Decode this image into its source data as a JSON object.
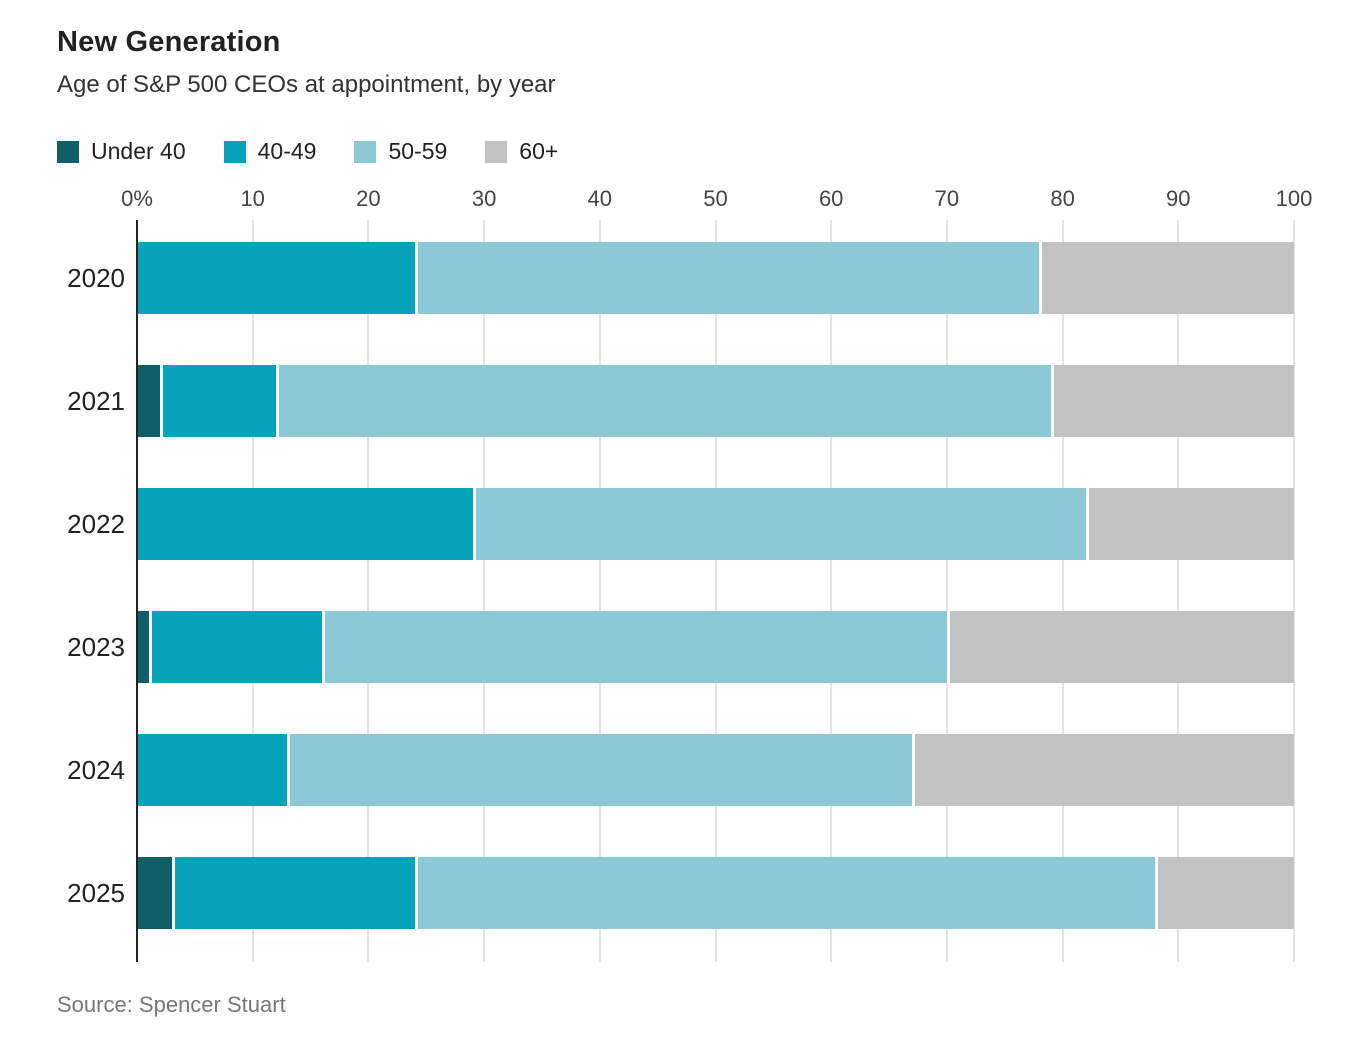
{
  "header": {
    "title": "New Generation",
    "subtitle": "Age of S&P 500 CEOs at appointment, by year"
  },
  "source_note": "Source: Spencer Stuart",
  "ui_colors": {
    "gridline": "#e4e4e4",
    "axis_line": "#222222",
    "title_text": "#222222",
    "tick_text": "#444444",
    "source_text": "#777777",
    "segment_gap": "#ffffff"
  },
  "chart_data": {
    "type": "bar",
    "variant": "stacked-horizontal",
    "title": "New Generation",
    "subtitle": "Age of S&P 500 CEOs at appointment, by year",
    "unit": "percent",
    "xlim": [
      0,
      100
    ],
    "grid": true,
    "legend_position": "top",
    "x_ticks": [
      {
        "label": "0%",
        "value": 0
      },
      {
        "label": "10",
        "value": 10
      },
      {
        "label": "20",
        "value": 20
      },
      {
        "label": "30",
        "value": 30
      },
      {
        "label": "40",
        "value": 40
      },
      {
        "label": "50",
        "value": 50
      },
      {
        "label": "60",
        "value": 60
      },
      {
        "label": "70",
        "value": 70
      },
      {
        "label": "80",
        "value": 80
      },
      {
        "label": "90",
        "value": 90
      },
      {
        "label": "100",
        "value": 100
      }
    ],
    "categories": [
      "2020",
      "2021",
      "2022",
      "2023",
      "2024",
      "2025"
    ],
    "series": [
      {
        "name": "Under 40",
        "color": "#0f5e68",
        "values": [
          0,
          2,
          0,
          1,
          0,
          3
        ]
      },
      {
        "name": "40-49",
        "color": "#06a3ba",
        "values": [
          24,
          10,
          29,
          15,
          13,
          21
        ]
      },
      {
        "name": "50-59",
        "color": "#8ac9d5",
        "values": [
          54,
          67,
          53,
          54,
          54,
          64
        ]
      },
      {
        "name": "60+",
        "color": "#c2c2c2",
        "values": [
          22,
          21,
          18,
          30,
          33,
          12
        ]
      }
    ]
  }
}
